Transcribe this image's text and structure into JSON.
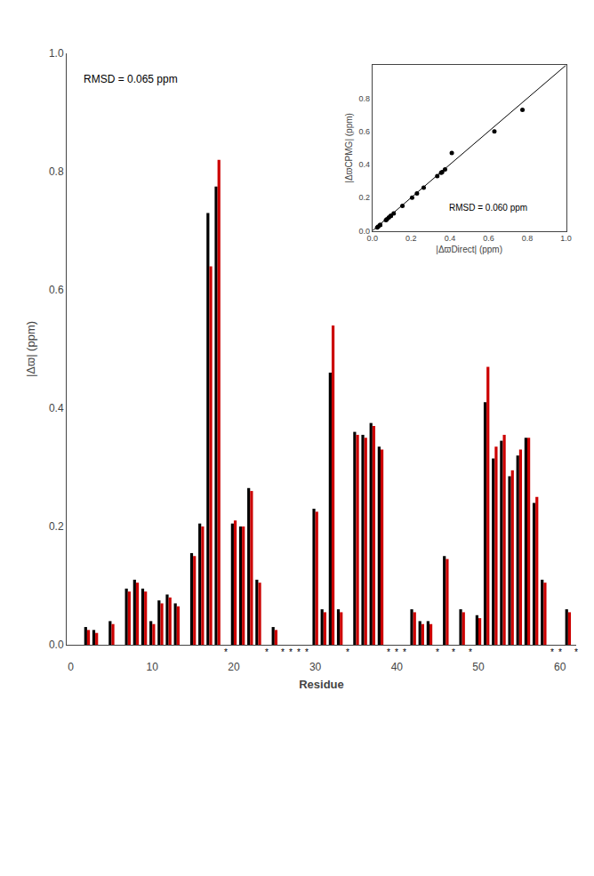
{
  "chart_data": [
    {
      "type": "bar",
      "title": "RMSD = 0.065 ppm",
      "xlabel": "Residue",
      "ylabel": "|Δϖ| (ppm)",
      "x": [
        2,
        3,
        5,
        7,
        8,
        9,
        10,
        11,
        12,
        13,
        15,
        16,
        17,
        18,
        20,
        21,
        22,
        23,
        25,
        30,
        31,
        32,
        33,
        35,
        36,
        37,
        38,
        42,
        43,
        44,
        46,
        48,
        50,
        51,
        52,
        53,
        54,
        55,
        56,
        57,
        58,
        61
      ],
      "series": [
        {
          "color": "#000000",
          "values": [
            0.03,
            0.025,
            0.04,
            0.095,
            0.11,
            0.095,
            0.04,
            0.075,
            0.085,
            0.07,
            0.155,
            0.205,
            0.73,
            0.775,
            0.205,
            0.2,
            0.265,
            0.11,
            0.03,
            0.23,
            0.06,
            0.46,
            0.06,
            0.36,
            0.355,
            0.375,
            0.335,
            0.06,
            0.04,
            0.04,
            0.15,
            0.06,
            0.05,
            0.41,
            0.315,
            0.345,
            0.285,
            0.32,
            0.35,
            0.24,
            0.11,
            0.06
          ]
        },
        {
          "color": "#cc0000",
          "values": [
            0.025,
            0.02,
            0.035,
            0.09,
            0.105,
            0.09,
            0.035,
            0.07,
            0.08,
            0.065,
            0.15,
            0.2,
            0.64,
            0.82,
            0.21,
            0.2,
            0.26,
            0.105,
            0.025,
            0.225,
            0.055,
            0.54,
            0.055,
            0.355,
            0.35,
            0.37,
            0.33,
            0.055,
            0.035,
            0.035,
            0.145,
            0.055,
            0.045,
            0.47,
            0.335,
            0.355,
            0.295,
            0.33,
            0.35,
            0.25,
            0.105,
            0.055
          ]
        }
      ],
      "xlim": [
        -0.5,
        62
      ],
      "ylim": [
        0,
        1.0
      ],
      "xticks": [
        0,
        10,
        20,
        30,
        40,
        50,
        60
      ],
      "yticks": [
        {
          "value": 0,
          "label": "0.0"
        },
        0.2,
        0.4,
        0.6,
        0.8,
        {
          "value": 1.0,
          "label": "1.0"
        }
      ],
      "grid": false,
      "annotations": [
        {
          "x": 19,
          "text": "*"
        },
        {
          "x": 24,
          "text": "*"
        },
        {
          "x": 26,
          "text": "*"
        },
        {
          "x": 27,
          "text": "*"
        },
        {
          "x": 28,
          "text": "*"
        },
        {
          "x": 29,
          "text": "*"
        },
        {
          "x": 34,
          "text": "*"
        },
        {
          "x": 39,
          "text": "*"
        },
        {
          "x": 40,
          "text": "*"
        },
        {
          "x": 41,
          "text": "*"
        },
        {
          "x": 45,
          "text": "*"
        },
        {
          "x": 47,
          "text": "*"
        },
        {
          "x": 49,
          "text": "*"
        },
        {
          "x": 59,
          "text": "*"
        },
        {
          "x": 60,
          "text": "*"
        },
        {
          "x": 62,
          "text": "*"
        }
      ]
    },
    {
      "type": "scatter",
      "xlabel": "|ΔϖDirect| (ppm)",
      "ylabel": "|ΔϖCPMG| (ppm)",
      "series": [
        {
          "type": "scatter",
          "color": "black",
          "x": [
            0.03,
            0.025,
            0.04,
            0.095,
            0.11,
            0.095,
            0.04,
            0.075,
            0.085,
            0.07,
            0.155,
            0.205,
            0.265,
            0.23,
            0.36,
            0.355,
            0.375,
            0.335,
            0.41,
            0.63,
            0.775
          ],
          "values": [
            0.025,
            0.02,
            0.035,
            0.09,
            0.105,
            0.09,
            0.035,
            0.07,
            0.08,
            0.065,
            0.15,
            0.2,
            0.26,
            0.225,
            0.355,
            0.35,
            0.37,
            0.33,
            0.47,
            0.6,
            0.73
          ]
        },
        {
          "type": "line",
          "color": "black",
          "x": [
            0,
            1.0
          ],
          "values": [
            0,
            1.0
          ]
        }
      ],
      "xlim": [
        0,
        1.0
      ],
      "ylim": [
        0,
        1.0
      ],
      "xticks": [
        {
          "value": 0,
          "label": "0.0"
        },
        0.2,
        0.4,
        0.6,
        0.8,
        {
          "value": 1.0,
          "label": "1.0"
        }
      ],
      "yticks": [
        {
          "value": 0,
          "label": "0.0"
        },
        0.2,
        0.4,
        0.6,
        0.8
      ],
      "grid": false,
      "annotations": [
        {
          "text": "RMSD = 0.060 ppm"
        }
      ]
    }
  ]
}
